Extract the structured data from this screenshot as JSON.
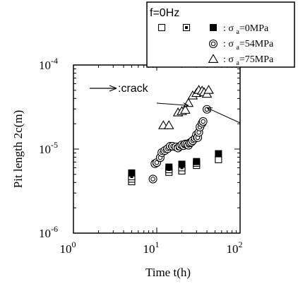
{
  "chart_data": {
    "type": "scatter",
    "xlabel": "Time  t(h)",
    "ylabel": "Pit  length  2c(m)",
    "x_scale": "log",
    "y_scale": "log",
    "xlim": [
      1,
      100
    ],
    "ylim": [
      1e-06,
      0.0001
    ],
    "x_ticks": [
      {
        "value": 1,
        "base": "10",
        "exp": "0"
      },
      {
        "value": 10,
        "base": "10",
        "exp": "1"
      },
      {
        "value": 100,
        "base": "10",
        "exp": "2"
      }
    ],
    "y_ticks": [
      {
        "value": 1e-06,
        "base": "10",
        "exp": "-6"
      },
      {
        "value": 1e-05,
        "base": "10",
        "exp": "-5"
      },
      {
        "value": 0.0001,
        "base": "10",
        "exp": "-4"
      }
    ],
    "legend": {
      "title": "f=0Hz",
      "entries": [
        {
          "sym_prefix": ": σ ",
          "sub": "a",
          "value": "=0MPa"
        },
        {
          "sym_prefix": ": σ ",
          "sub": "a",
          "value": "=54MPa"
        },
        {
          "sym_prefix": ": σ ",
          "sub": "a",
          "value": "=75MPa"
        }
      ]
    },
    "annotation": ":crack",
    "series": [
      {
        "marker": "open-square",
        "points": [
          [
            5,
            4.1e-06
          ],
          [
            5,
            4.4e-06
          ],
          [
            14,
            5.3e-06
          ],
          [
            20,
            5.5e-06
          ],
          [
            30,
            6.4e-06
          ],
          [
            55,
            7.5e-06
          ]
        ]
      },
      {
        "marker": "dotted-square",
        "points": [
          [
            5,
            4.7e-06
          ],
          [
            14,
            5.7e-06
          ],
          [
            20,
            6e-06
          ],
          [
            30,
            6.8e-06
          ]
        ]
      },
      {
        "marker": "filled-square",
        "points": [
          [
            5,
            5.2e-06
          ],
          [
            14,
            6.1e-06
          ],
          [
            20,
            6.6e-06
          ],
          [
            30,
            7.1e-06
          ],
          [
            55,
            8.8e-06
          ]
        ]
      },
      {
        "marker": "double-circle",
        "points": [
          [
            9,
            4.4e-06
          ],
          [
            9.5,
            6.7e-06
          ],
          [
            10,
            6.9e-06
          ],
          [
            11,
            7.9e-06
          ],
          [
            11.5,
            9.1e-06
          ],
          [
            12.5,
            9.6e-06
          ],
          [
            13.5,
            1.01e-05
          ],
          [
            14.5,
            1.08e-05
          ],
          [
            15.5,
            1.08e-05
          ],
          [
            17,
            1.06e-05
          ],
          [
            18,
            1.03e-05
          ],
          [
            19,
            1.08e-05
          ],
          [
            20,
            1.12e-05
          ],
          [
            21,
            1.1e-05
          ],
          [
            22,
            1.15e-05
          ],
          [
            23,
            1.14e-05
          ],
          [
            24,
            1.11e-05
          ],
          [
            25,
            1.19e-05
          ],
          [
            26,
            1.21e-05
          ],
          [
            27,
            1.26e-05
          ],
          [
            29,
            1.35e-05
          ],
          [
            30,
            1.48e-05
          ],
          [
            31,
            1.37e-05
          ],
          [
            32,
            1.58e-05
          ],
          [
            33,
            1.83e-05
          ],
          [
            35,
            2.03e-05
          ],
          [
            36,
            2.13e-05
          ],
          [
            40,
            2.97e-05
          ]
        ]
      },
      {
        "marker": "open-triangle",
        "points": [
          [
            12,
            1.9e-05
          ],
          [
            14,
            1.9e-05
          ],
          [
            18,
            2.7e-05
          ],
          [
            20,
            2.8e-05
          ],
          [
            22,
            2.9e-05
          ],
          [
            24,
            3.5e-05
          ],
          [
            27,
            4.3e-05
          ],
          [
            30,
            4.6e-05
          ],
          [
            32,
            5e-05
          ],
          [
            35,
            4.9e-05
          ],
          [
            37,
            4.7e-05
          ],
          [
            40,
            4.5e-05
          ],
          [
            42,
            5e-05
          ]
        ]
      }
    ],
    "crack_arrows": [
      {
        "target": [
          24,
          3.3e-05
        ]
      },
      {
        "target": [
          40,
          3.1e-05
        ]
      }
    ]
  }
}
